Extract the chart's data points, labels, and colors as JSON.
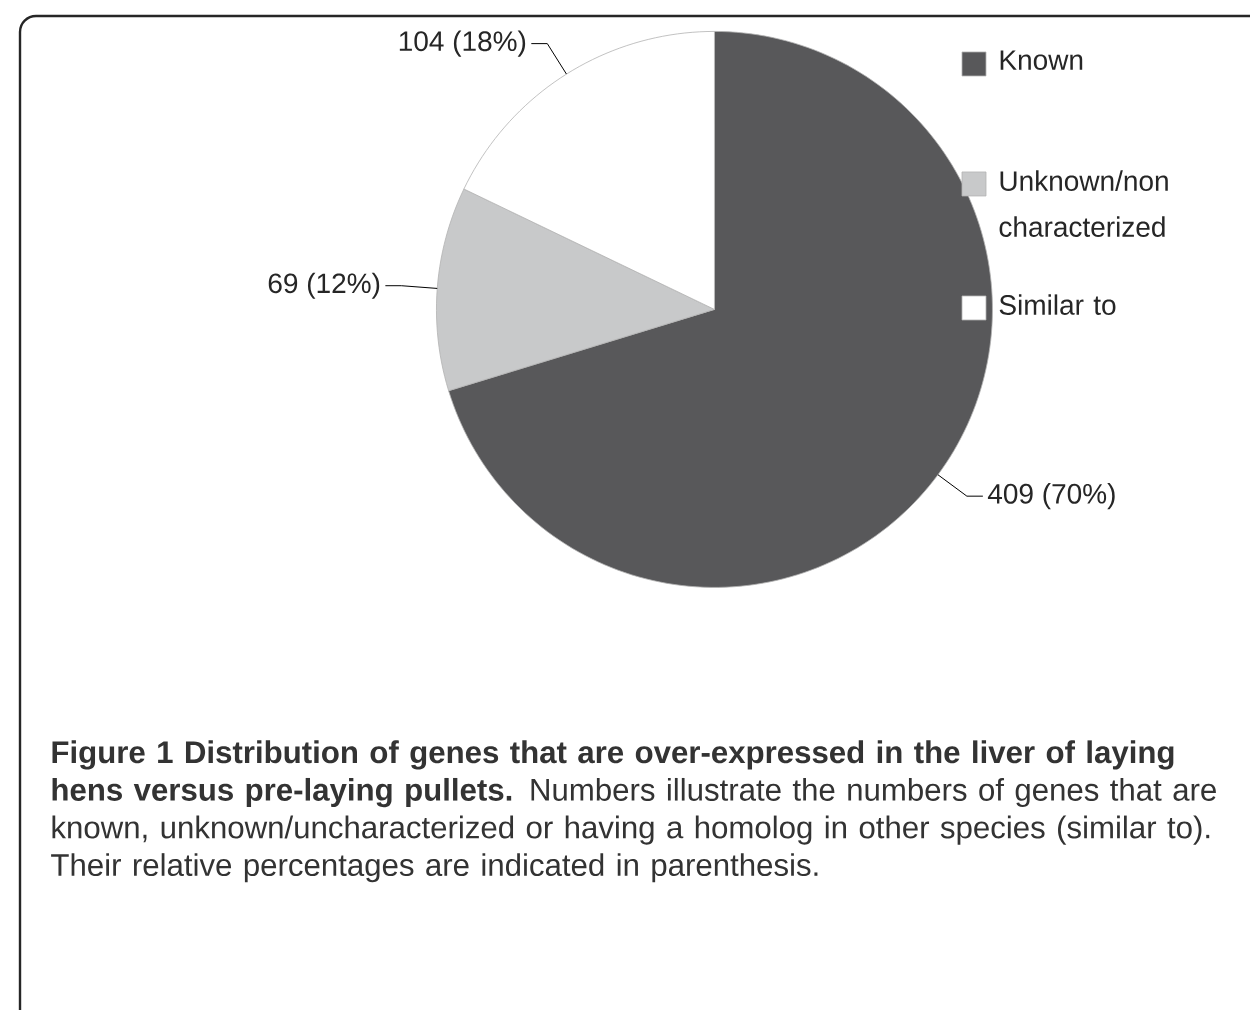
{
  "chart_data": {
    "type": "pie",
    "categories": [
      "Known",
      "Unknown/non characterized",
      "Similar to"
    ],
    "values": [
      409,
      69,
      104
    ],
    "colors": [
      "#58585a",
      "#c8c9ca",
      "#ffffff"
    ],
    "value_labels": [
      "409 (70%)",
      "69 (12%)",
      "104 (18%)"
    ],
    "legend": "top right",
    "annotations": [
      "**Figure 1 Distribution of genes that are over-expressed in the liver of laying hens versus pre-laying pullets.** Numbers illustrate the numbers of genes that are known, unknown/uncharacterized or having a homolog in other species (similar to). Their relative percentages are indicated in parenthesis."
    ]
  }
}
